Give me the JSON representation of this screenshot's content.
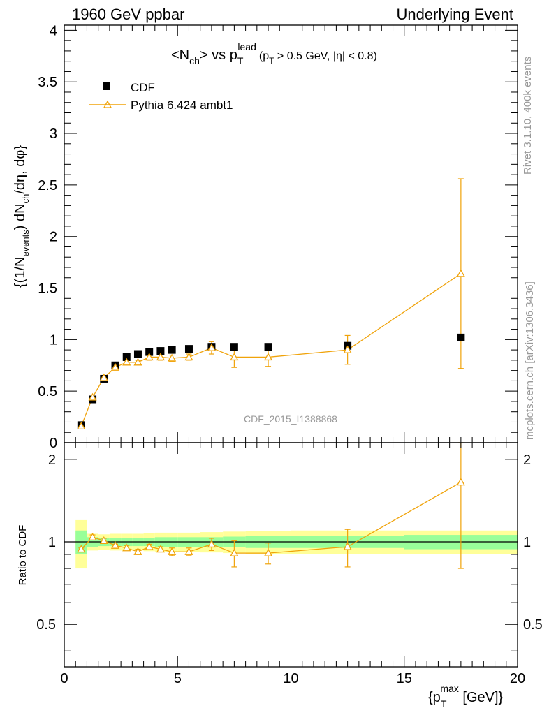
{
  "header": {
    "left": "1960 GeV ppbar",
    "right": "Underlying Event"
  },
  "side_labels": {
    "rivet": "Rivet 3.1.10,  400k events",
    "mcplots": "mcplots.cern.ch [arXiv:1306.3436]"
  },
  "title": {
    "main": "<N",
    "main_sub": "ch",
    "main_mid": "> vs p",
    "main_sub2": "T",
    "main_sup2": "lead",
    "cut_a": "(p",
    "cut_a_sub": "T",
    "cut_b": " > 0.5 GeV, |η| < 0.8)"
  },
  "watermark": "CDF_2015_I1388868",
  "colors": {
    "cdf": "#000000",
    "mc": "#f0a30a",
    "band_inner": "#99ff99",
    "band_outer": "#ffff99"
  },
  "chart_data": [
    {
      "type": "scatter",
      "panel": "main",
      "ylabel": "{(1/N_events) dN_ch/dη, dφ}",
      "ylabel_parts": {
        "a": "{(1/N",
        "b": "events",
        "c": ") dN",
        "d": "ch",
        "e": "/dη, dφ}"
      },
      "xlim": [
        0,
        20
      ],
      "ylim": [
        0,
        4.05
      ],
      "yticks": [
        "0",
        "0.5",
        "1",
        "1.5",
        "2",
        "2.5",
        "3",
        "3.5",
        "4"
      ],
      "legend": {
        "position": "top-left",
        "entries": [
          "CDF",
          "Pythia 6.424 ambt1"
        ]
      },
      "series": [
        {
          "name": "CDF",
          "marker": "square",
          "x": [
            0.75,
            1.25,
            1.75,
            2.25,
            2.75,
            3.25,
            3.75,
            4.25,
            4.75,
            5.5,
            6.5,
            7.5,
            9.0,
            12.5,
            17.5
          ],
          "y": [
            0.17,
            0.42,
            0.62,
            0.75,
            0.83,
            0.86,
            0.88,
            0.89,
            0.9,
            0.91,
            0.93,
            0.93,
            0.93,
            0.94,
            1.02
          ]
        },
        {
          "name": "Pythia 6.424 ambt1",
          "marker": "open-triangle",
          "x": [
            0.75,
            1.25,
            1.75,
            2.25,
            2.75,
            3.25,
            3.75,
            4.25,
            4.75,
            5.5,
            6.5,
            7.5,
            9.0,
            12.5,
            17.5
          ],
          "y": [
            0.16,
            0.44,
            0.63,
            0.73,
            0.78,
            0.78,
            0.83,
            0.83,
            0.82,
            0.83,
            0.92,
            0.83,
            0.83,
            0.9,
            1.64
          ],
          "yerr": [
            0.01,
            0.01,
            0.01,
            0.01,
            0.02,
            0.02,
            0.03,
            0.03,
            0.03,
            0.03,
            0.06,
            0.1,
            0.09,
            0.14,
            0.92
          ]
        }
      ]
    },
    {
      "type": "scatter",
      "panel": "ratio",
      "ylabel": "Ratio to CDF",
      "xlabel": "{p_T^max [GeV]}",
      "xlabel_parts": {
        "a": "{p",
        "sub": "T",
        "sup": "max",
        "b": " [GeV]}"
      },
      "xlim": [
        0,
        20
      ],
      "ylim": [
        0.35,
        2.3
      ],
      "xticks": [
        "0",
        "5",
        "10",
        "15",
        "20"
      ],
      "yticks": [
        "0.5",
        "1",
        "2"
      ],
      "reference_line": 1,
      "bands": {
        "edges": [
          0.5,
          1.0,
          1.5,
          2.0,
          2.5,
          3.0,
          3.5,
          4.0,
          4.5,
          5.0,
          6.0,
          7.0,
          8.0,
          10.0,
          15.0,
          20.0
        ],
        "inner": [
          0.1,
          0.04,
          0.035,
          0.035,
          0.035,
          0.035,
          0.035,
          0.04,
          0.04,
          0.04,
          0.04,
          0.045,
          0.05,
          0.05,
          0.06
        ],
        "outer": [
          0.2,
          0.07,
          0.065,
          0.07,
          0.07,
          0.07,
          0.075,
          0.08,
          0.08,
          0.08,
          0.085,
          0.09,
          0.095,
          0.1,
          0.1
        ]
      },
      "series": [
        {
          "name": "Pythia 6.424 ambt1",
          "x": [
            0.75,
            1.25,
            1.75,
            2.25,
            2.75,
            3.25,
            3.75,
            4.25,
            4.75,
            5.5,
            6.5,
            7.5,
            9.0,
            12.5,
            17.5
          ],
          "y": [
            0.94,
            1.04,
            1.01,
            0.97,
            0.95,
            0.92,
            0.96,
            0.94,
            0.92,
            0.92,
            0.98,
            0.91,
            0.91,
            0.96,
            1.65
          ],
          "yerr": [
            0.01,
            0.02,
            0.02,
            0.01,
            0.02,
            0.02,
            0.02,
            0.02,
            0.03,
            0.03,
            0.05,
            0.1,
            0.08,
            0.15,
            0.85
          ]
        }
      ]
    }
  ]
}
